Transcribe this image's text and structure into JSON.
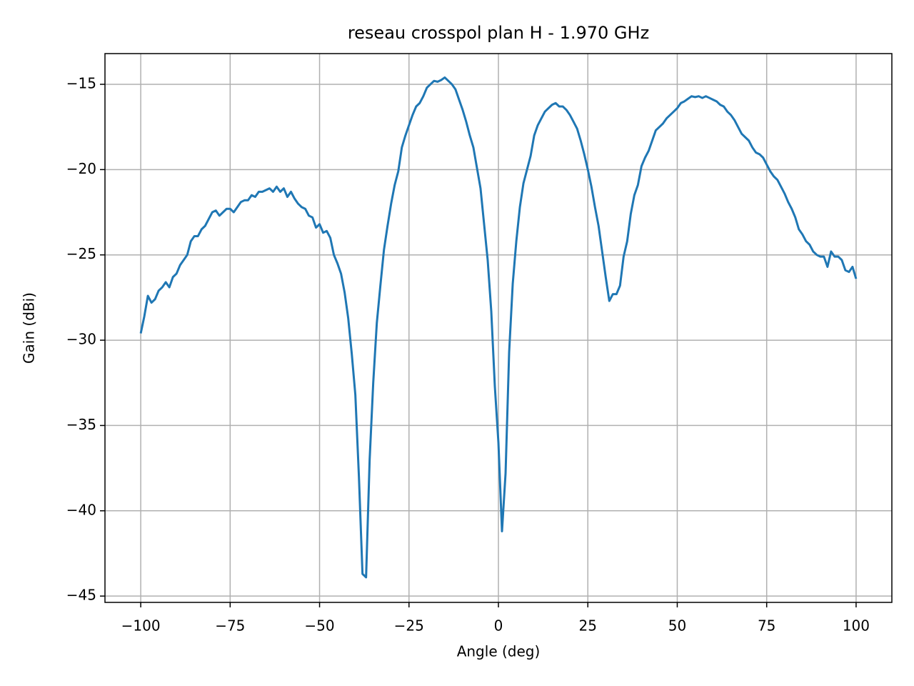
{
  "chart_data": {
    "type": "line",
    "title": "reseau crosspol plan H - 1.970 GHz",
    "xlabel": "Angle (deg)",
    "ylabel": "Gain (dBi)",
    "xlim": [
      -110,
      110
    ],
    "ylim": [
      -45.37,
      -13.2
    ],
    "xticks": [
      {
        "value": -100,
        "label": "−100"
      },
      {
        "value": -75,
        "label": "−75"
      },
      {
        "value": -50,
        "label": "−50"
      },
      {
        "value": -25,
        "label": "−25"
      },
      0,
      25,
      50,
      75,
      100
    ],
    "yticks": [
      {
        "value": -45,
        "label": "−45"
      },
      {
        "value": -40,
        "label": "−40"
      },
      {
        "value": -35,
        "label": "−35"
      },
      {
        "value": -30,
        "label": "−30"
      },
      {
        "value": -25,
        "label": "−25"
      },
      {
        "value": -20,
        "label": "−20"
      },
      {
        "value": -15,
        "label": "−15"
      }
    ],
    "grid": true,
    "x": [
      -100,
      -99,
      -98,
      -97,
      -96,
      -95,
      -94,
      -93,
      -92,
      -91,
      -90,
      -89,
      -88,
      -87,
      -86,
      -85,
      -84,
      -83,
      -82,
      -81,
      -80,
      -79,
      -78,
      -77,
      -76,
      -75,
      -74,
      -73,
      -72,
      -71,
      -70,
      -69,
      -68,
      -67,
      -66,
      -65,
      -64,
      -63,
      -62,
      -61,
      -60,
      -59,
      -58,
      -57,
      -56,
      -55,
      -54,
      -53,
      -52,
      -51,
      -50,
      -49,
      -48,
      -47,
      -46,
      -45,
      -44,
      -43,
      -42,
      -41,
      -40,
      -39,
      -38,
      -37,
      -36,
      -35,
      -34,
      -33,
      -32,
      -31,
      -30,
      -29,
      -28,
      -27,
      -26,
      -25,
      -24,
      -23,
      -22,
      -21,
      -20,
      -19,
      -18,
      -17,
      -16,
      -15,
      -14,
      -13,
      -12,
      -11,
      -10,
      -9,
      -8,
      -7,
      -6,
      -5,
      -4,
      -3,
      -2,
      -1,
      0,
      1,
      2,
      3,
      4,
      5,
      6,
      7,
      8,
      9,
      10,
      11,
      12,
      13,
      14,
      15,
      16,
      17,
      18,
      19,
      20,
      21,
      22,
      23,
      24,
      25,
      26,
      27,
      28,
      29,
      30,
      31,
      32,
      33,
      34,
      35,
      36,
      37,
      38,
      39,
      40,
      41,
      42,
      43,
      44,
      45,
      46,
      47,
      48,
      49,
      50,
      51,
      52,
      53,
      54,
      55,
      56,
      57,
      58,
      59,
      60,
      61,
      62,
      63,
      64,
      65,
      66,
      67,
      68,
      69,
      70,
      71,
      72,
      73,
      74,
      75,
      76,
      77,
      78,
      79,
      80,
      81,
      82,
      83,
      84,
      85,
      86,
      87,
      88,
      89,
      90,
      91,
      92,
      93,
      94,
      95,
      96,
      97,
      98,
      99,
      100
    ],
    "series": [
      {
        "name": "gain",
        "color": "#1f77b4",
        "values": [
          -29.6,
          -28.6,
          -27.4,
          -27.8,
          -27.6,
          -27.1,
          -26.9,
          -26.6,
          -26.9,
          -26.3,
          -26.1,
          -25.6,
          -25.3,
          -25.0,
          -24.2,
          -23.9,
          -23.9,
          -23.5,
          -23.3,
          -22.9,
          -22.5,
          -22.4,
          -22.7,
          -22.5,
          -22.3,
          -22.3,
          -22.5,
          -22.2,
          -21.9,
          -21.8,
          -21.8,
          -21.5,
          -21.6,
          -21.3,
          -21.3,
          -21.2,
          -21.1,
          -21.3,
          -21.0,
          -21.3,
          -21.1,
          -21.6,
          -21.3,
          -21.7,
          -22.0,
          -22.2,
          -22.3,
          -22.7,
          -22.8,
          -23.4,
          -23.2,
          -23.7,
          -23.6,
          -24.0,
          -25.0,
          -25.5,
          -26.1,
          -27.2,
          -28.7,
          -30.8,
          -33.2,
          -38.0,
          -43.7,
          -43.9,
          -37.0,
          -32.5,
          -29.0,
          -26.8,
          -24.7,
          -23.3,
          -22.0,
          -20.9,
          -20.1,
          -18.7,
          -18.0,
          -17.4,
          -16.8,
          -16.3,
          -16.1,
          -15.7,
          -15.2,
          -15.0,
          -14.8,
          -14.85,
          -14.75,
          -14.6,
          -14.8,
          -15.0,
          -15.3,
          -15.9,
          -16.5,
          -17.2,
          -18.0,
          -18.7,
          -19.9,
          -21.1,
          -23.2,
          -25.3,
          -28.3,
          -32.7,
          -36.0,
          -41.2,
          -37.8,
          -30.7,
          -26.7,
          -24.2,
          -22.2,
          -20.8,
          -20.0,
          -19.2,
          -18.0,
          -17.4,
          -17.0,
          -16.6,
          -16.4,
          -16.2,
          -16.1,
          -16.3,
          -16.3,
          -16.5,
          -16.8,
          -17.2,
          -17.6,
          -18.3,
          -19.1,
          -20.0,
          -21.0,
          -22.2,
          -23.3,
          -24.8,
          -26.3,
          -27.7,
          -27.3,
          -27.3,
          -26.8,
          -25.1,
          -24.2,
          -22.6,
          -21.5,
          -20.9,
          -19.8,
          -19.3,
          -18.9,
          -18.3,
          -17.7,
          -17.5,
          -17.3,
          -17.0,
          -16.8,
          -16.6,
          -16.4,
          -16.1,
          -16.0,
          -15.85,
          -15.7,
          -15.75,
          -15.7,
          -15.8,
          -15.7,
          -15.8,
          -15.9,
          -16.0,
          -16.2,
          -16.3,
          -16.6,
          -16.8,
          -17.1,
          -17.5,
          -17.9,
          -18.1,
          -18.3,
          -18.7,
          -19.0,
          -19.1,
          -19.3,
          -19.7,
          -20.1,
          -20.4,
          -20.6,
          -21.0,
          -21.4,
          -21.9,
          -22.3,
          -22.8,
          -23.5,
          -23.8,
          -24.2,
          -24.4,
          -24.8,
          -25.0,
          -25.1,
          -25.1,
          -25.7,
          -24.8,
          -25.1,
          -25.1,
          -25.3,
          -25.9,
          -26.0,
          -25.7,
          -26.4
        ]
      }
    ]
  }
}
